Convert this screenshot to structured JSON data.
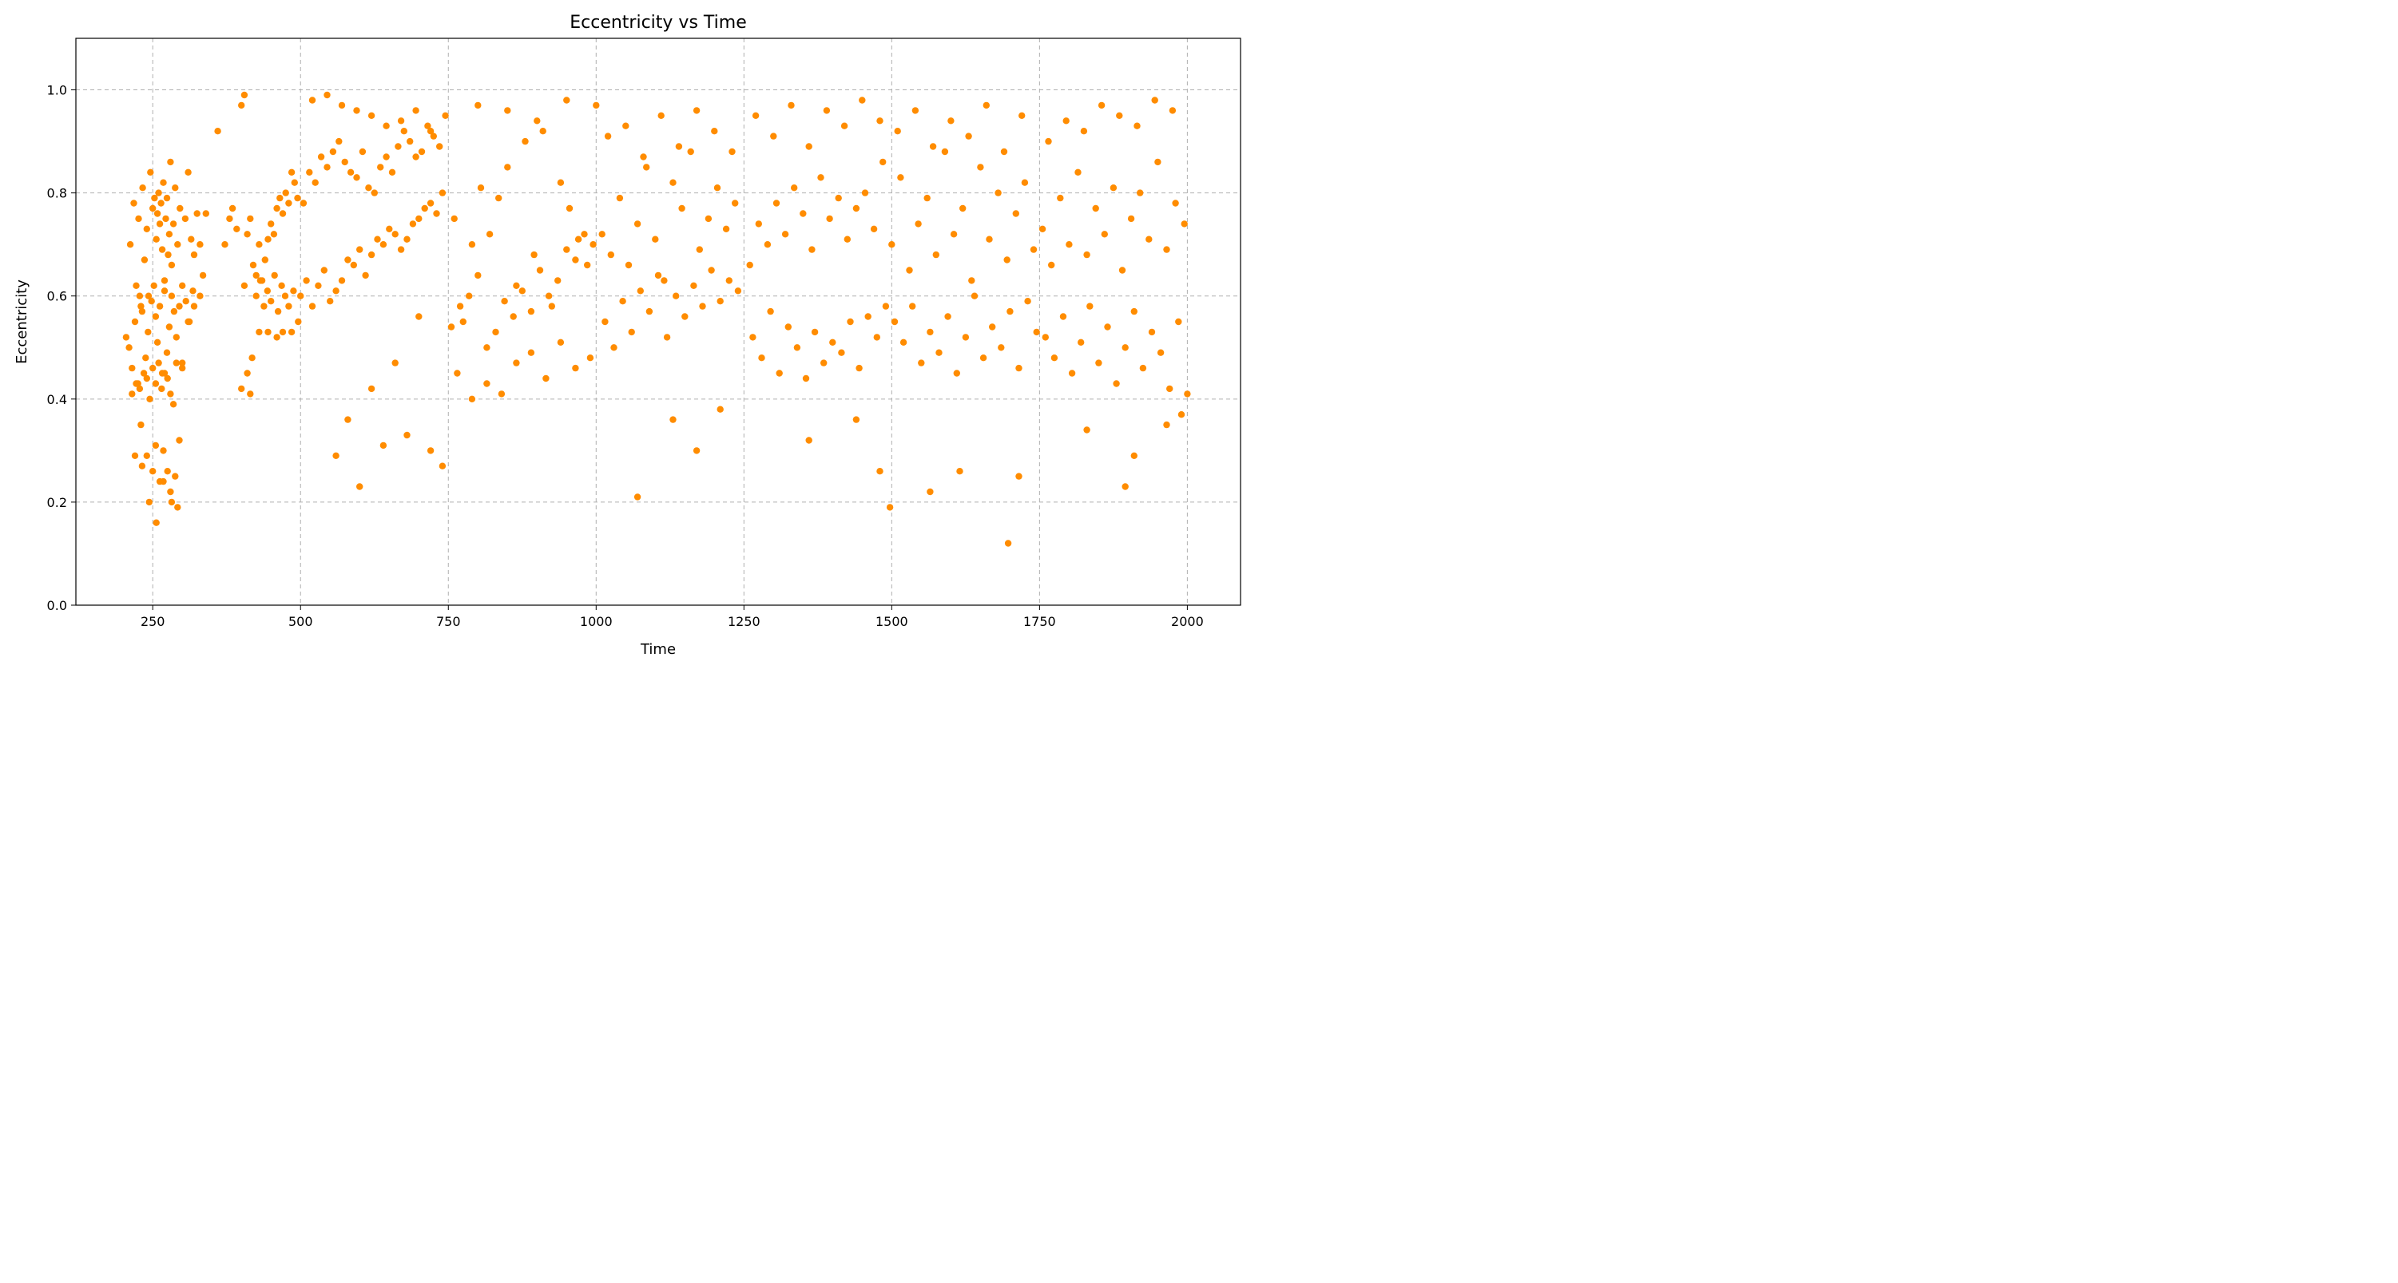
{
  "chart_data": {
    "type": "scatter",
    "title": "Eccentricity vs Time",
    "xlabel": "Time",
    "ylabel": "Eccentricity",
    "xlim": [
      120,
      2090
    ],
    "ylim": [
      0.0,
      1.1
    ],
    "xticks": [
      250,
      500,
      750,
      1000,
      1250,
      1500,
      1750,
      2000
    ],
    "yticks": [
      0.0,
      0.2,
      0.4,
      0.6,
      0.8,
      1.0
    ],
    "xtick_labels": [
      "250",
      "500",
      "750",
      "1000",
      "1250",
      "1500",
      "1750",
      "2000"
    ],
    "ytick_labels": [
      "0.0",
      "0.2",
      "0.4",
      "0.6",
      "0.8",
      "1.0"
    ],
    "grid": true,
    "marker_color": "#ff8c00",
    "series": [
      {
        "x": [
          205,
          212,
          218,
          222,
          226,
          230,
          233,
          236,
          240,
          243,
          246,
          250,
          253,
          256,
          258,
          260,
          262,
          264,
          266,
          268,
          270,
          272,
          274,
          276,
          278,
          280,
          282,
          285,
          288,
          292,
          296,
          300,
          305,
          310,
          315,
          320,
          325,
          330,
          335,
          340,
          210,
          215,
          220,
          225,
          228,
          232,
          238,
          242,
          248,
          252,
          255,
          258,
          262,
          266,
          270,
          274,
          278,
          282,
          286,
          290,
          295,
          300,
          306,
          312,
          318,
          215,
          222,
          228,
          235,
          240,
          245,
          250,
          255,
          260,
          265,
          270,
          275,
          280,
          285,
          290,
          300,
          310,
          320,
          330,
          230,
          240,
          250,
          255,
          262,
          268,
          275,
          282,
          288,
          295,
          220,
          232,
          244,
          256,
          268,
          280,
          292,
          360,
          372,
          380,
          385,
          392,
          400,
          405,
          410,
          415,
          420,
          425,
          430,
          435,
          440,
          445,
          450,
          455,
          460,
          465,
          470,
          475,
          480,
          485,
          490,
          495,
          405,
          410,
          418,
          425,
          432,
          438,
          444,
          450,
          456,
          462,
          468,
          474,
          480,
          488,
          496,
          400,
          415,
          430,
          445,
          460,
          470,
          485,
          500,
          510,
          520,
          530,
          540,
          550,
          560,
          570,
          580,
          590,
          600,
          610,
          620,
          630,
          640,
          650,
          660,
          670,
          680,
          690,
          700,
          710,
          720,
          730,
          740,
          505,
          515,
          525,
          535,
          545,
          555,
          565,
          575,
          585,
          595,
          605,
          615,
          625,
          635,
          645,
          655,
          665,
          675,
          685,
          695,
          705,
          715,
          725,
          735,
          745,
          520,
          545,
          570,
          595,
          620,
          645,
          670,
          695,
          720,
          560,
          580,
          600,
          620,
          640,
          660,
          680,
          700,
          720,
          740,
          760,
          775,
          790,
          805,
          820,
          835,
          850,
          865,
          880,
          895,
          910,
          925,
          940,
          955,
          970,
          985,
          755,
          770,
          785,
          800,
          815,
          830,
          845,
          860,
          875,
          890,
          905,
          920,
          935,
          950,
          965,
          980,
          995,
          765,
          790,
          815,
          840,
          865,
          890,
          915,
          940,
          965,
          990,
          800,
          850,
          900,
          950,
          1000,
          1010,
          1025,
          1040,
          1055,
          1070,
          1085,
          1100,
          1115,
          1130,
          1145,
          1160,
          1175,
          1190,
          1205,
          1220,
          1235,
          1015,
          1030,
          1045,
          1060,
          1075,
          1090,
          1105,
          1120,
          1135,
          1150,
          1165,
          1180,
          1195,
          1210,
          1225,
          1240,
          1020,
          1050,
          1080,
          1110,
          1140,
          1170,
          1200,
          1230,
          1070,
          1130,
          1170,
          1210,
          1260,
          1275,
          1290,
          1305,
          1320,
          1335,
          1350,
          1365,
          1380,
          1395,
          1410,
          1425,
          1440,
          1455,
          1470,
          1485,
          1265,
          1280,
          1295,
          1310,
          1325,
          1340,
          1355,
          1370,
          1385,
          1400,
          1415,
          1430,
          1445,
          1460,
          1475,
          1490,
          1270,
          1300,
          1330,
          1360,
          1390,
          1420,
          1450,
          1480,
          1360,
          1440,
          1480,
          1500,
          1515,
          1530,
          1545,
          1560,
          1575,
          1590,
          1605,
          1620,
          1635,
          1650,
          1665,
          1680,
          1695,
          1710,
          1725,
          1740,
          1505,
          1520,
          1535,
          1550,
          1565,
          1580,
          1595,
          1610,
          1625,
          1640,
          1655,
          1670,
          1685,
          1700,
          1715,
          1730,
          1745,
          1510,
          1540,
          1570,
          1600,
          1630,
          1660,
          1690,
          1720,
          1497,
          1565,
          1615,
          1697,
          1715,
          1755,
          1770,
          1785,
          1800,
          1815,
          1830,
          1845,
          1860,
          1875,
          1890,
          1905,
          1920,
          1935,
          1950,
          1965,
          1980,
          1995,
          1760,
          1775,
          1790,
          1805,
          1820,
          1835,
          1850,
          1865,
          1880,
          1895,
          1910,
          1925,
          1940,
          1955,
          1970,
          1985,
          2000,
          1765,
          1795,
          1825,
          1855,
          1885,
          1915,
          1945,
          1975,
          1830,
          1895,
          1910,
          1965,
          1990
        ],
        "y": [
          0.52,
          0.7,
          0.78,
          0.62,
          0.75,
          0.58,
          0.81,
          0.67,
          0.73,
          0.6,
          0.84,
          0.77,
          0.79,
          0.71,
          0.76,
          0.8,
          0.74,
          0.78,
          0.69,
          0.82,
          0.63,
          0.75,
          0.79,
          0.68,
          0.72,
          0.86,
          0.66,
          0.74,
          0.81,
          0.7,
          0.77,
          0.62,
          0.75,
          0.84,
          0.71,
          0.68,
          0.76,
          0.7,
          0.64,
          0.76,
          0.5,
          0.46,
          0.55,
          0.43,
          0.6,
          0.57,
          0.48,
          0.53,
          0.59,
          0.62,
          0.56,
          0.51,
          0.58,
          0.45,
          0.61,
          0.49,
          0.54,
          0.6,
          0.57,
          0.52,
          0.58,
          0.47,
          0.59,
          0.55,
          0.61,
          0.41,
          0.43,
          0.42,
          0.45,
          0.44,
          0.4,
          0.46,
          0.43,
          0.47,
          0.42,
          0.45,
          0.44,
          0.41,
          0.39,
          0.47,
          0.46,
          0.55,
          0.58,
          0.6,
          0.35,
          0.29,
          0.26,
          0.31,
          0.24,
          0.3,
          0.26,
          0.2,
          0.25,
          0.32,
          0.29,
          0.27,
          0.2,
          0.16,
          0.24,
          0.22,
          0.19,
          0.92,
          0.7,
          0.75,
          0.77,
          0.73,
          0.97,
          0.99,
          0.72,
          0.75,
          0.66,
          0.64,
          0.7,
          0.63,
          0.67,
          0.71,
          0.74,
          0.72,
          0.77,
          0.79,
          0.76,
          0.8,
          0.78,
          0.84,
          0.82,
          0.79,
          0.62,
          0.45,
          0.48,
          0.6,
          0.63,
          0.58,
          0.61,
          0.59,
          0.64,
          0.57,
          0.62,
          0.6,
          0.58,
          0.61,
          0.55,
          0.42,
          0.41,
          0.53,
          0.53,
          0.52,
          0.53,
          0.53,
          0.6,
          0.63,
          0.58,
          0.62,
          0.65,
          0.59,
          0.61,
          0.63,
          0.67,
          0.66,
          0.69,
          0.64,
          0.68,
          0.71,
          0.7,
          0.73,
          0.72,
          0.69,
          0.71,
          0.74,
          0.75,
          0.77,
          0.78,
          0.76,
          0.8,
          0.78,
          0.84,
          0.82,
          0.87,
          0.85,
          0.88,
          0.9,
          0.86,
          0.84,
          0.83,
          0.88,
          0.81,
          0.8,
          0.85,
          0.87,
          0.84,
          0.89,
          0.92,
          0.9,
          0.87,
          0.88,
          0.93,
          0.91,
          0.89,
          0.95,
          0.98,
          0.99,
          0.97,
          0.96,
          0.95,
          0.93,
          0.94,
          0.96,
          0.92,
          0.29,
          0.36,
          0.23,
          0.42,
          0.31,
          0.47,
          0.33,
          0.56,
          0.3,
          0.27,
          0.75,
          0.55,
          0.7,
          0.81,
          0.72,
          0.79,
          0.85,
          0.62,
          0.9,
          0.68,
          0.92,
          0.58,
          0.82,
          0.77,
          0.71,
          0.66,
          0.54,
          0.58,
          0.6,
          0.64,
          0.5,
          0.53,
          0.59,
          0.56,
          0.61,
          0.57,
          0.65,
          0.6,
          0.63,
          0.69,
          0.67,
          0.72,
          0.7,
          0.45,
          0.4,
          0.43,
          0.41,
          0.47,
          0.49,
          0.44,
          0.51,
          0.46,
          0.48,
          0.97,
          0.96,
          0.94,
          0.98,
          0.97,
          0.72,
          0.68,
          0.79,
          0.66,
          0.74,
          0.85,
          0.71,
          0.63,
          0.82,
          0.77,
          0.88,
          0.69,
          0.75,
          0.81,
          0.73,
          0.78,
          0.55,
          0.5,
          0.59,
          0.53,
          0.61,
          0.57,
          0.64,
          0.52,
          0.6,
          0.56,
          0.62,
          0.58,
          0.65,
          0.59,
          0.63,
          0.61,
          0.91,
          0.93,
          0.87,
          0.95,
          0.89,
          0.96,
          0.92,
          0.88,
          0.21,
          0.36,
          0.3,
          0.38,
          0.66,
          0.74,
          0.7,
          0.78,
          0.72,
          0.81,
          0.76,
          0.69,
          0.83,
          0.75,
          0.79,
          0.71,
          0.77,
          0.8,
          0.73,
          0.86,
          0.52,
          0.48,
          0.57,
          0.45,
          0.54,
          0.5,
          0.44,
          0.53,
          0.47,
          0.51,
          0.49,
          0.55,
          0.46,
          0.56,
          0.52,
          0.58,
          0.95,
          0.91,
          0.97,
          0.89,
          0.96,
          0.93,
          0.98,
          0.94,
          0.32,
          0.36,
          0.26,
          0.7,
          0.83,
          0.65,
          0.74,
          0.79,
          0.68,
          0.88,
          0.72,
          0.77,
          0.63,
          0.85,
          0.71,
          0.8,
          0.67,
          0.76,
          0.82,
          0.69,
          0.55,
          0.51,
          0.58,
          0.47,
          0.53,
          0.49,
          0.56,
          0.45,
          0.52,
          0.6,
          0.48,
          0.54,
          0.5,
          0.57,
          0.46,
          0.59,
          0.53,
          0.92,
          0.96,
          0.89,
          0.94,
          0.91,
          0.97,
          0.88,
          0.95,
          0.19,
          0.22,
          0.26,
          0.12,
          0.25,
          0.73,
          0.66,
          0.79,
          0.7,
          0.84,
          0.68,
          0.77,
          0.72,
          0.81,
          0.65,
          0.75,
          0.8,
          0.71,
          0.86,
          0.69,
          0.78,
          0.74,
          0.52,
          0.48,
          0.56,
          0.45,
          0.51,
          0.58,
          0.47,
          0.54,
          0.43,
          0.5,
          0.57,
          0.46,
          0.53,
          0.49,
          0.42,
          0.55,
          0.41,
          0.9,
          0.94,
          0.92,
          0.97,
          0.95,
          0.93,
          0.98,
          0.96,
          0.34,
          0.23,
          0.29,
          0.35,
          0.37
        ]
      }
    ]
  }
}
